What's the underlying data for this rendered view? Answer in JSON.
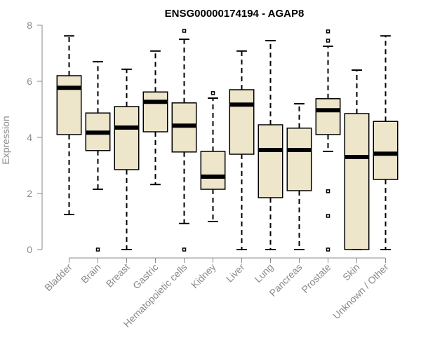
{
  "chart_data": {
    "type": "boxplot",
    "title": "ENSG00000174194 - AGAP8",
    "xlabel": "",
    "ylabel": "Expression",
    "ylim": [
      0,
      8
    ],
    "yticks": [
      "0",
      "2",
      "4",
      "6",
      "8"
    ],
    "grid": false,
    "colors": {
      "box_fill": "#ede6ca",
      "box_stroke": "#000000",
      "axis": "#8a8a8a"
    },
    "categories": [
      "Bladder",
      "Brain",
      "Breast",
      "Gastric",
      "Hematopoietic cells",
      "Kidney",
      "Liver",
      "Lung",
      "Pancreas",
      "Prostate",
      "Skin",
      "Unknown / Other"
    ],
    "boxes": [
      {
        "min": 1.25,
        "q1": 4.1,
        "median": 5.77,
        "q3": 6.2,
        "max": 7.62,
        "outliers": []
      },
      {
        "min": 2.15,
        "q1": 3.53,
        "median": 4.17,
        "q3": 4.87,
        "max": 6.7,
        "outliers": [
          0.0
        ]
      },
      {
        "min": 0.0,
        "q1": 2.85,
        "median": 4.35,
        "q3": 5.1,
        "max": 6.43,
        "outliers": []
      },
      {
        "min": 2.32,
        "q1": 4.2,
        "median": 5.27,
        "q3": 5.62,
        "max": 7.08,
        "outliers": []
      },
      {
        "min": 0.93,
        "q1": 3.48,
        "median": 4.42,
        "q3": 5.23,
        "max": 7.5,
        "outliers": [
          7.8,
          0.0
        ]
      },
      {
        "min": 1.0,
        "q1": 2.15,
        "median": 2.6,
        "q3": 3.5,
        "max": 5.4,
        "outliers": [
          5.58
        ]
      },
      {
        "min": 0.0,
        "q1": 3.4,
        "median": 5.17,
        "q3": 5.7,
        "max": 7.08,
        "outliers": []
      },
      {
        "min": 0.0,
        "q1": 1.85,
        "median": 3.55,
        "q3": 4.45,
        "max": 7.45,
        "outliers": []
      },
      {
        "min": 0.0,
        "q1": 2.1,
        "median": 3.55,
        "q3": 4.33,
        "max": 5.2,
        "outliers": []
      },
      {
        "min": 3.5,
        "q1": 4.1,
        "median": 4.97,
        "q3": 5.38,
        "max": 7.25,
        "outliers": [
          7.78,
          7.45,
          2.08,
          1.2,
          0.0
        ]
      },
      {
        "min": 0.0,
        "q1": 0.0,
        "median": 3.3,
        "q3": 4.85,
        "max": 6.4,
        "outliers": []
      },
      {
        "min": 0.0,
        "q1": 2.5,
        "median": 3.42,
        "q3": 4.57,
        "max": 7.62,
        "outliers": []
      }
    ]
  }
}
